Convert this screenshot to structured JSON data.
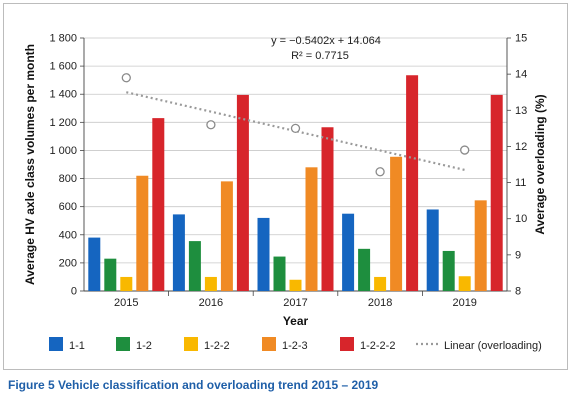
{
  "chart_data": {
    "type": "bar",
    "xlabel": "Year",
    "ylabel": "Average HV axle class volumes per month",
    "ylabel_right": "Average overloading (%)",
    "categories": [
      "2015",
      "2016",
      "2017",
      "2018",
      "2019"
    ],
    "ylim": [
      0,
      1800
    ],
    "yticks": [
      0,
      200,
      400,
      600,
      800,
      1000,
      1200,
      1400,
      1600,
      1800
    ],
    "ytick_labels": [
      "0",
      "200",
      "400",
      "600",
      "800",
      "1 000",
      "1 200",
      "1 400",
      "1 600",
      "1 800"
    ],
    "ylim_right": [
      8,
      15
    ],
    "yticks_right": [
      8,
      9,
      10,
      11,
      12,
      13,
      14,
      15
    ],
    "grid": "horizontal",
    "legend_position": "bottom",
    "series": [
      {
        "name": "1-1",
        "color": "#1565c0",
        "values": [
          380,
          545,
          520,
          550,
          580
        ]
      },
      {
        "name": "1-2",
        "color": "#1e8e3e",
        "values": [
          230,
          355,
          245,
          300,
          285
        ]
      },
      {
        "name": "1-2-2",
        "color": "#f9b800",
        "values": [
          100,
          100,
          80,
          100,
          105
        ]
      },
      {
        "name": "1-2-3",
        "color": "#f08a24",
        "values": [
          820,
          780,
          880,
          955,
          645
        ]
      },
      {
        "name": "1-2-2-2",
        "color": "#d7252b",
        "values": [
          1230,
          1395,
          1165,
          1535,
          1395
        ]
      }
    ],
    "overloading_points": {
      "axis": "right",
      "values": [
        13.9,
        12.6,
        12.5,
        11.3,
        11.9
      ]
    },
    "trendline": {
      "name": "Linear (overloading)",
      "axis": "right",
      "start": 13.5,
      "end": 11.35,
      "equation": "y = −0.5402x + 14.064",
      "r2": "R² = 0.7715",
      "color": "#9a9a9a"
    }
  },
  "caption": {
    "label": "Figure 5",
    "text": "Vehicle classification and overloading trend 2015 – 2019"
  }
}
